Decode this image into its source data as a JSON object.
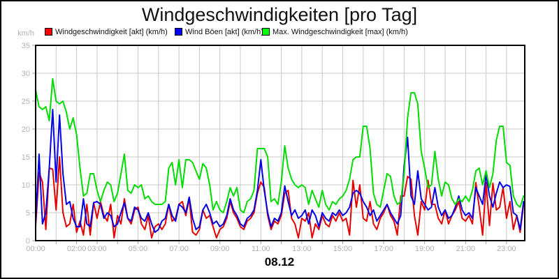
{
  "title": "Windgeschwindigkeiten [pro Tag]",
  "y_unit_label": "km/h",
  "date_label": "08.12",
  "legend": [
    {
      "label": "Windgeschwindigkeit [akt] (km/h)",
      "color": "#ff0000"
    },
    {
      "label": "Wind Böen [akt] (km/h)",
      "color": "#0000ff"
    },
    {
      "label": "Max. Windgeschwindigkeit [max] (km/h)",
      "color": "#00ff00"
    }
  ],
  "colors": {
    "grid": "#c8c8c8",
    "axis": "#000000",
    "tick": "#a0a0a0",
    "tick_label": "#b0b0b0",
    "title_text": "#111111"
  },
  "chart_data": {
    "type": "line",
    "title": "Windgeschwindigkeiten [pro Tag]",
    "xlabel": "08.12",
    "ylabel": "km/h",
    "grid": true,
    "legend_position": "top",
    "x_start": "00:00",
    "x_end": "23:50",
    "x_step_minutes": 10,
    "x_axis": {
      "hours_span": 24,
      "ticks": [
        {
          "hour": 0,
          "label": "00:00"
        },
        {
          "hour": 2,
          "label": "02:00"
        },
        {
          "hour": 3,
          "label": "03:00"
        },
        {
          "hour": 5,
          "label": "05:00"
        },
        {
          "hour": 7,
          "label": "07:00"
        },
        {
          "hour": 9,
          "label": "09:00"
        },
        {
          "hour": 11,
          "label": "11:00"
        },
        {
          "hour": 13,
          "label": "13:00"
        },
        {
          "hour": 15,
          "label": "15:00"
        },
        {
          "hour": 17,
          "label": "17:00"
        },
        {
          "hour": 19,
          "label": "19:00"
        },
        {
          "hour": 21,
          "label": "21:00"
        },
        {
          "hour": 23,
          "label": "23:00"
        }
      ]
    },
    "y_axis": {
      "min": 0,
      "max": 35,
      "tick_step": 5,
      "tick_labels": [
        "0",
        "5",
        "10",
        "15",
        "20",
        "25",
        "30",
        "35"
      ]
    },
    "series": [
      {
        "name": "Windgeschwindigkeit [akt] (km/h)",
        "color": "#e60000",
        "values": [
          2.5,
          12.2,
          10.5,
          2,
          13,
          12.8,
          5.5,
          15,
          5,
          2.5,
          3,
          6.5,
          1.5,
          3.5,
          1,
          6.5,
          1,
          6.8,
          4,
          7,
          4.5,
          3.5,
          6.5,
          0.5,
          4.5,
          3,
          7.5,
          4,
          3,
          5.5,
          6,
          3,
          2,
          4.5,
          0.5,
          2.5,
          3,
          2,
          3,
          6.5,
          3.5,
          4,
          6.5,
          7,
          4.5,
          7.5,
          1.5,
          1,
          2,
          5.5,
          4,
          4.5,
          2.5,
          0.5,
          2,
          2.5,
          4,
          7,
          5,
          4,
          2.5,
          2,
          3.5,
          4,
          5,
          8.5,
          10.5,
          9.5,
          4.5,
          2,
          3.5,
          3,
          4.5,
          8.5,
          9,
          4,
          3,
          0.5,
          4,
          3.5,
          5,
          0.5,
          3,
          2,
          4.5,
          3,
          2.5,
          4.5,
          3.5,
          5,
          3.5,
          4,
          1,
          10.8,
          6,
          10,
          4,
          3.5,
          7,
          3,
          2,
          4,
          5,
          6.5,
          4.5,
          3.5,
          1,
          8,
          8,
          11.5,
          11,
          4.5,
          1,
          7,
          5.5,
          10.8,
          6.5,
          6.5,
          4,
          3,
          5.5,
          3,
          4.5,
          5.5,
          7,
          4,
          3.5,
          4.5,
          3,
          10.4,
          6,
          1,
          10.4,
          2.7,
          10.3,
          5.5,
          6,
          9.5,
          4,
          7,
          2,
          4.5,
          1.5,
          6.5
        ]
      },
      {
        "name": "Wind Böen [akt] (km/h)",
        "color": "#0000e6",
        "values": [
          3,
          15.5,
          3,
          5,
          13,
          23.5,
          10.5,
          22.5,
          12,
          6.5,
          7,
          4,
          2.5,
          2.5,
          7.5,
          3,
          2.5,
          6.8,
          7,
          6.5,
          4,
          5,
          4.5,
          2.5,
          3,
          5,
          6.8,
          4,
          3.5,
          6,
          5.5,
          4,
          3.5,
          5,
          3,
          1.5,
          2,
          3.5,
          4,
          6.5,
          4.5,
          3.5,
          6.5,
          6,
          5,
          7.8,
          4,
          2,
          2.5,
          5.5,
          6.5,
          5,
          3,
          3.5,
          2.5,
          3,
          4.5,
          7.5,
          5.5,
          4.5,
          3,
          2.5,
          4,
          4.5,
          5.5,
          9,
          14.5,
          9,
          5,
          2.5,
          4,
          3.5,
          5,
          9.8,
          7,
          4.5,
          5.5,
          4,
          4.5,
          5.5,
          3,
          5.5,
          4.5,
          2.5,
          5,
          4,
          3.5,
          5,
          4.5,
          5.5,
          4.5,
          5,
          6,
          8.5,
          9,
          8.5,
          7,
          6,
          4.5,
          5.5,
          3.5,
          4.5,
          5.5,
          6.5,
          5,
          4,
          3,
          4.5,
          13.5,
          18.5,
          8,
          6.5,
          12.5,
          7.5,
          6.5,
          5.5,
          6,
          9.5,
          6,
          4.5,
          5.5,
          4,
          4.5,
          6,
          8,
          5.5,
          4.5,
          5,
          4,
          9.5,
          8,
          6.5,
          11.8,
          8,
          6,
          8.5,
          10.5,
          9.5,
          10,
          9.7,
          5,
          4.5,
          2,
          7
        ]
      },
      {
        "name": "Max. Windgeschwindigkeit [max] (km/h)",
        "color": "#00dc00",
        "values": [
          27,
          24,
          23.5,
          24,
          21.5,
          29,
          25,
          24.5,
          25,
          23,
          20,
          22,
          19,
          13,
          8,
          8.5,
          12,
          12,
          9,
          7,
          9,
          10.5,
          10,
          7,
          8.5,
          12,
          15.5,
          9,
          8.5,
          10,
          9.5,
          10,
          7.5,
          8,
          7,
          6.5,
          6.5,
          6.5,
          7,
          13,
          14,
          10,
          14.5,
          9.5,
          14.5,
          14.5,
          14,
          12.5,
          11,
          13.8,
          13,
          10,
          5.5,
          7,
          5.5,
          5,
          7,
          9.5,
          8,
          9.5,
          5.5,
          5,
          7,
          7.5,
          9,
          16.5,
          16.5,
          16.5,
          15,
          7,
          7.5,
          6.5,
          10.5,
          17,
          13,
          11,
          10,
          9.5,
          10,
          9.5,
          6.5,
          9,
          7.5,
          6,
          9,
          6.5,
          5.5,
          7,
          6.5,
          7.5,
          8,
          9,
          11,
          14.5,
          15,
          15,
          20.5,
          20.5,
          16.5,
          8.5,
          6.5,
          6,
          9,
          12,
          11.5,
          8,
          6.5,
          7,
          12,
          22,
          26.5,
          26.5,
          24.5,
          16,
          13,
          9.5,
          10,
          16,
          11,
          8,
          10.5,
          10,
          7.5,
          6.5,
          7.5,
          7,
          8,
          7,
          9,
          12.5,
          13,
          10,
          12.5,
          9.5,
          12,
          18,
          20.5,
          20.5,
          14,
          13.5,
          8,
          6.5,
          6,
          8
        ]
      }
    ]
  }
}
